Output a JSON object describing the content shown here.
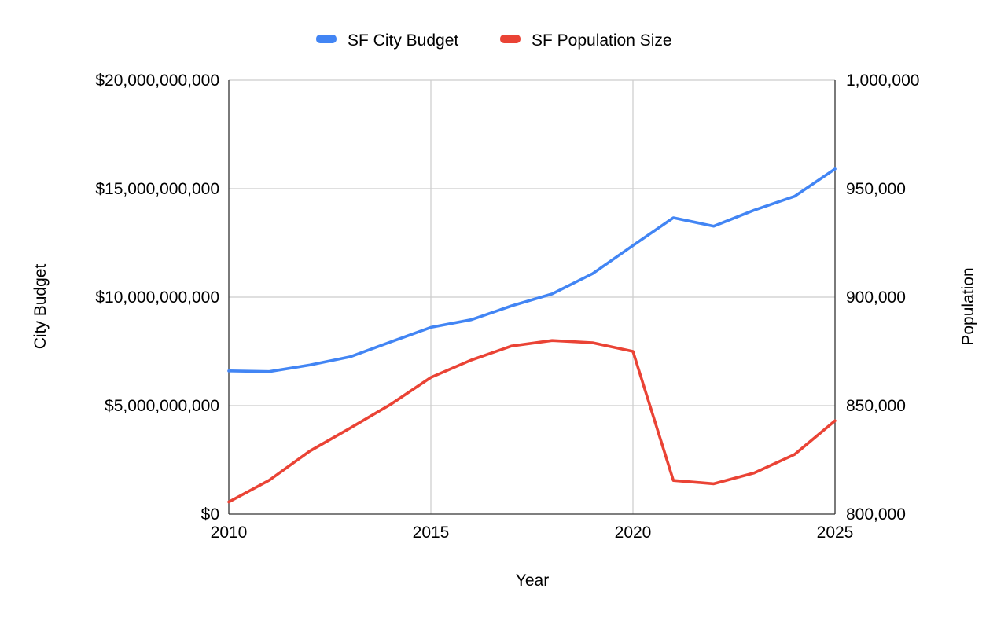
{
  "chart_data": {
    "type": "line",
    "title": "",
    "xlabel": "Year",
    "ylabel_left": "City Budget",
    "ylabel_right": "Population",
    "legend_position": "top",
    "grid": true,
    "xlim": [
      2010,
      2025
    ],
    "x_ticks": [
      2010,
      2015,
      2020,
      2025
    ],
    "x_tick_labels": [
      "2010",
      "2015",
      "2020",
      "2025"
    ],
    "ylim_left": [
      0,
      20000000000
    ],
    "y_ticks_left": [
      0,
      5000000000,
      10000000000,
      15000000000,
      20000000000
    ],
    "y_tick_labels_left": [
      "$0",
      "$5,000,000,000",
      "$10,000,000,000",
      "$15,000,000,000",
      "$20,000,000,000"
    ],
    "ylim_right": [
      800000,
      1000000
    ],
    "y_ticks_right": [
      800000,
      850000,
      900000,
      950000,
      1000000
    ],
    "y_tick_labels_right": [
      "800,000",
      "850,000",
      "900,000",
      "950,000",
      "1,000,000"
    ],
    "x": [
      2010,
      2011,
      2012,
      2013,
      2014,
      2015,
      2016,
      2017,
      2018,
      2019,
      2020,
      2021,
      2022,
      2023,
      2024,
      2025
    ],
    "series": [
      {
        "name": "SF City Budget",
        "axis": "left",
        "color": "#4285F4",
        "values": [
          6600000000,
          6570000000,
          6870000000,
          7250000000,
          7930000000,
          8610000000,
          8960000000,
          9600000000,
          10150000000,
          11080000000,
          12380000000,
          13660000000,
          13270000000,
          14010000000,
          14650000000,
          15910000000
        ]
      },
      {
        "name": "SF Population Size",
        "axis": "right",
        "color": "#EA4335",
        "values": [
          805600,
          815600,
          829000,
          839600,
          850500,
          863000,
          871000,
          877500,
          880000,
          879000,
          875000,
          815500,
          814000,
          819000,
          827500,
          843000
        ]
      }
    ]
  }
}
